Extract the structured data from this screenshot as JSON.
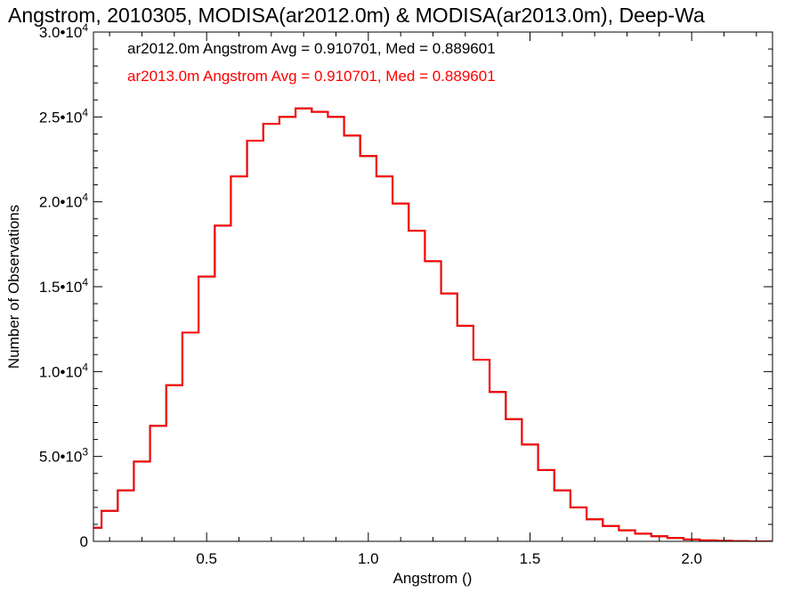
{
  "chart_data": {
    "type": "line",
    "step": true,
    "title": "Angstrom, 2010305, MODISA(ar2012.0m) & MODISA(ar2013.0m), Deep-Wa",
    "xlabel": "Angstrom ()",
    "ylabel": "Number of Observations",
    "xlim": [
      0.15,
      2.25
    ],
    "ylim": [
      0,
      30000
    ],
    "x_ticks": [
      {
        "value": 0.5,
        "label": "0.5"
      },
      {
        "value": 1.0,
        "label": "1.0"
      },
      {
        "value": 1.5,
        "label": "1.5"
      },
      {
        "value": 2.0,
        "label": "2.0"
      }
    ],
    "y_ticks": [
      {
        "value": 0,
        "mantissa": "0",
        "exponent": ""
      },
      {
        "value": 5000,
        "mantissa": "5.0•10",
        "exponent": "3"
      },
      {
        "value": 10000,
        "mantissa": "1.0•10",
        "exponent": "4"
      },
      {
        "value": 15000,
        "mantissa": "1.5•10",
        "exponent": "4"
      },
      {
        "value": 20000,
        "mantissa": "2.0•10",
        "exponent": "4"
      },
      {
        "value": 25000,
        "mantissa": "2.5•10",
        "exponent": "4"
      },
      {
        "value": 30000,
        "mantissa": "3.0•10",
        "exponent": "4"
      }
    ],
    "legend": [
      {
        "text": "ar2012.0m Angstrom Avg = 0.910701, Med = 0.889601",
        "color": "#000000"
      },
      {
        "text": "ar2013.0m Angstrom Avg = 0.910701, Med = 0.889601",
        "color": "#ff0000"
      }
    ],
    "legend_position": "top-left",
    "series": [
      {
        "name": "ar2012.0m",
        "color": "#000000",
        "x": [
          0.15,
          0.2,
          0.25,
          0.3,
          0.35,
          0.4,
          0.45,
          0.5,
          0.55,
          0.6,
          0.65,
          0.7,
          0.75,
          0.8,
          0.85,
          0.9,
          0.95,
          1.0,
          1.05,
          1.1,
          1.15,
          1.2,
          1.25,
          1.3,
          1.35,
          1.4,
          1.45,
          1.5,
          1.55,
          1.6,
          1.65,
          1.7,
          1.75,
          1.8,
          1.85,
          1.9,
          1.95,
          2.0,
          2.05,
          2.1,
          2.15,
          2.2,
          2.25
        ],
        "y": [
          800,
          1800,
          3000,
          4700,
          6800,
          9200,
          12300,
          15600,
          18600,
          21500,
          23600,
          24600,
          25000,
          25500,
          25300,
          25000,
          23900,
          22700,
          21500,
          19900,
          18300,
          16500,
          14600,
          12700,
          10700,
          8800,
          7200,
          5700,
          4200,
          3000,
          2000,
          1300,
          900,
          650,
          450,
          300,
          200,
          110,
          60,
          30,
          10,
          0,
          0
        ]
      },
      {
        "name": "ar2013.0m",
        "color": "#ff0000",
        "x": [
          0.15,
          0.2,
          0.25,
          0.3,
          0.35,
          0.4,
          0.45,
          0.5,
          0.55,
          0.6,
          0.65,
          0.7,
          0.75,
          0.8,
          0.85,
          0.9,
          0.95,
          1.0,
          1.05,
          1.1,
          1.15,
          1.2,
          1.25,
          1.3,
          1.35,
          1.4,
          1.45,
          1.5,
          1.55,
          1.6,
          1.65,
          1.7,
          1.75,
          1.8,
          1.85,
          1.9,
          1.95,
          2.0,
          2.05,
          2.1,
          2.15,
          2.2,
          2.25
        ],
        "y": [
          800,
          1800,
          3000,
          4700,
          6800,
          9200,
          12300,
          15600,
          18600,
          21500,
          23600,
          24600,
          25000,
          25500,
          25300,
          25000,
          23900,
          22700,
          21500,
          19900,
          18300,
          16500,
          14600,
          12700,
          10700,
          8800,
          7200,
          5700,
          4200,
          3000,
          2000,
          1300,
          900,
          650,
          450,
          300,
          200,
          110,
          60,
          30,
          10,
          0,
          0
        ]
      }
    ]
  }
}
